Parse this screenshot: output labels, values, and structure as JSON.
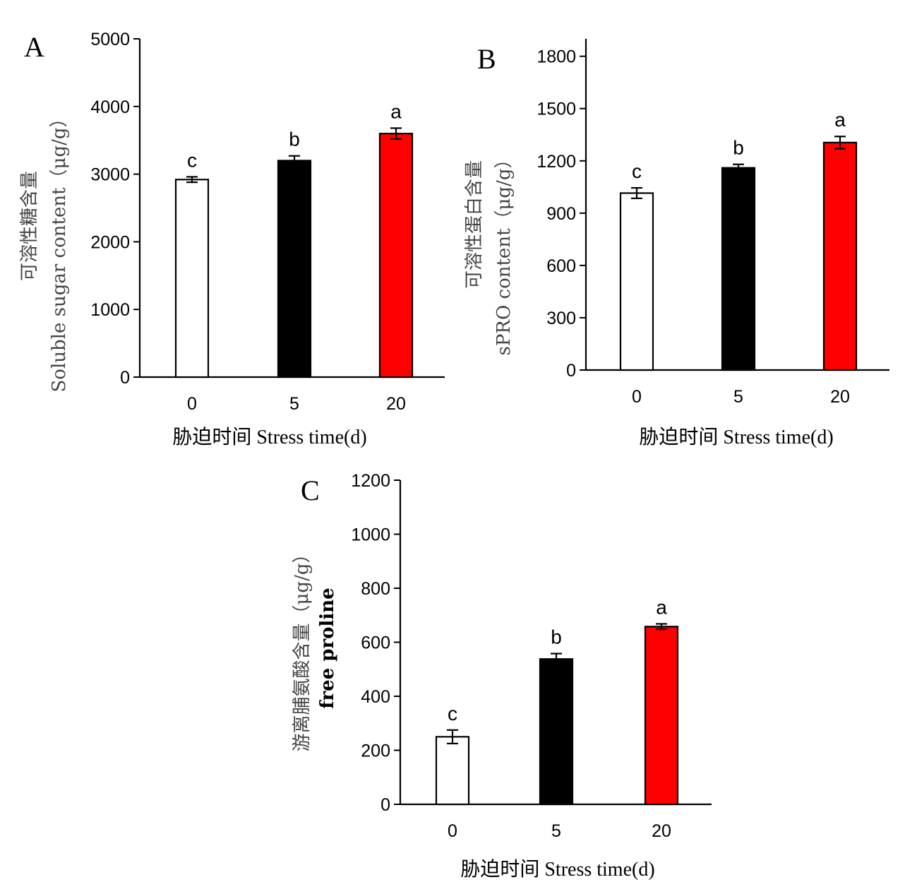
{
  "chart_data": [
    {
      "panel": "A",
      "type": "bar",
      "categories": [
        "0",
        "5",
        "20"
      ],
      "values": [
        2920,
        3200,
        3600
      ],
      "errors": [
        40,
        70,
        80
      ],
      "significance": [
        "c",
        "b",
        "a"
      ],
      "bar_colors": [
        "#ffffff",
        "#000000",
        "#ff0000"
      ],
      "ylim": [
        0,
        5000
      ],
      "yticks": [
        "0",
        "1000",
        "2000",
        "3000",
        "4000",
        "5000"
      ],
      "ylabel_cn": "可溶性糖含量",
      "ylabel_en": "Soluble sugar content",
      "yunit": "（μg/g）",
      "xlabel": "胁迫时间  Stress time(d)"
    },
    {
      "panel": "B",
      "type": "bar",
      "categories": [
        "0",
        "5",
        "20"
      ],
      "values": [
        1015,
        1160,
        1305
      ],
      "errors": [
        30,
        20,
        35
      ],
      "significance": [
        "c",
        "b",
        "a"
      ],
      "bar_colors": [
        "#ffffff",
        "#000000",
        "#ff0000"
      ],
      "ylim": [
        0,
        1900
      ],
      "yticks": [
        "0",
        "300",
        "600",
        "900",
        "1200",
        "1500",
        "1800"
      ],
      "ylabel_cn": "可溶性蛋白含量",
      "ylabel_en": "sPRO content",
      "yunit": "（μg/g）",
      "xlabel": "胁迫时间  Stress time(d)"
    },
    {
      "panel": "C",
      "type": "bar",
      "categories": [
        "0",
        "5",
        "20"
      ],
      "values": [
        250,
        538,
        658
      ],
      "errors": [
        25,
        20,
        10
      ],
      "significance": [
        "c",
        "b",
        "a"
      ],
      "bar_colors": [
        "#ffffff",
        "#000000",
        "#ff0000"
      ],
      "ylim": [
        0,
        1200
      ],
      "yticks": [
        "0",
        "200",
        "400",
        "600",
        "800",
        "1000",
        "1200"
      ],
      "ylabel_cn": "游离脯氨酸含量",
      "ylabel_en": "free proline",
      "yunit": "（μg/g）",
      "xlabel": "胁迫时间  Stress time(d)"
    }
  ]
}
